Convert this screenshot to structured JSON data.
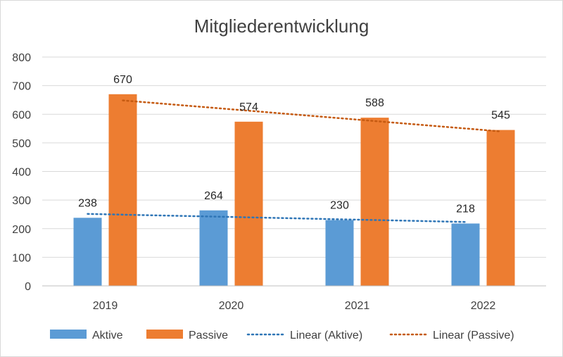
{
  "chart_data": {
    "type": "bar",
    "title": "Mitgliederentwicklung",
    "categories": [
      "2019",
      "2020",
      "2021",
      "2022"
    ],
    "series": [
      {
        "name": "Aktive",
        "values": [
          238,
          264,
          230,
          218
        ],
        "color": "#5b9bd5"
      },
      {
        "name": "Passive",
        "values": [
          670,
          574,
          588,
          545
        ],
        "color": "#ed7d31"
      }
    ],
    "trendlines": [
      {
        "name": "Linear (Aktive)",
        "type": "linear",
        "series": "Aktive",
        "color": "#2e75b6"
      },
      {
        "name": "Linear (Passive)",
        "type": "linear",
        "series": "Passive",
        "color": "#c55a11"
      }
    ],
    "ylim": [
      0,
      800
    ],
    "yticks": [
      "0",
      "100",
      "200",
      "300",
      "400",
      "500",
      "600",
      "700",
      "800"
    ],
    "grid": true,
    "legend": "bottom"
  }
}
